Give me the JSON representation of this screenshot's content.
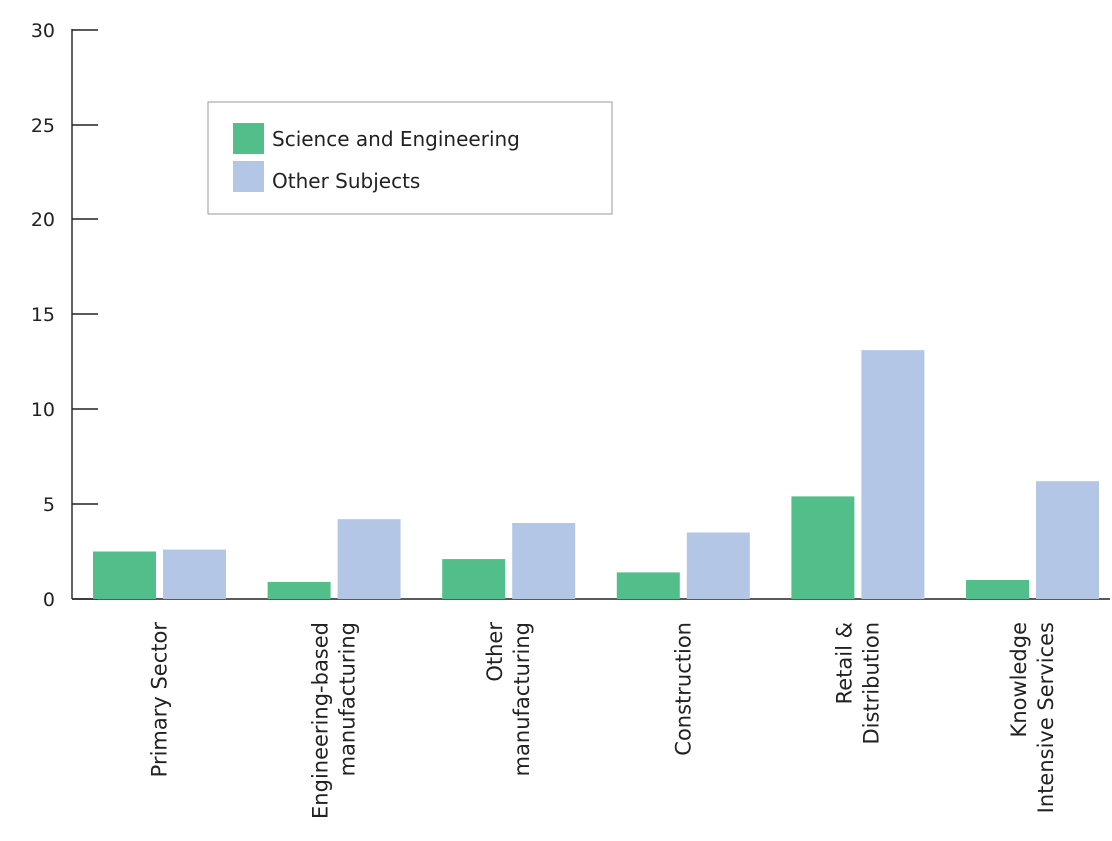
{
  "chart_data": {
    "type": "bar",
    "categories": [
      [
        "Primary Sector"
      ],
      [
        "Engineering-based",
        "manufacturing"
      ],
      [
        "Other",
        "manufacturing"
      ],
      [
        "Construction"
      ],
      [
        "Retail &",
        "Distribution"
      ],
      [
        "Knowledge",
        "Intensive Services"
      ]
    ],
    "series": [
      {
        "name": "Science and Engineering",
        "color": "#52be8a",
        "values": [
          2.5,
          0.9,
          2.1,
          1.4,
          5.4,
          1.0
        ]
      },
      {
        "name": "Other Subjects",
        "color": "#b3c6e6",
        "values": [
          2.6,
          4.2,
          4.0,
          3.5,
          13.1,
          6.2
        ]
      }
    ],
    "yticks": [
      "0",
      "5",
      "10",
      "15",
      "20",
      "25",
      "30"
    ],
    "ylim": [
      0,
      30
    ],
    "xlabel": "",
    "ylabel": "",
    "title": "",
    "grid": false,
    "legend_position": "top-left"
  }
}
